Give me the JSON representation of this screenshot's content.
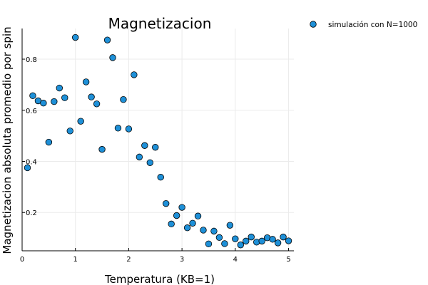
{
  "chart_data": {
    "type": "scatter",
    "title": "Magnetizacion",
    "xlabel": "Temperatura (KB=1)",
    "ylabel": "Magnetizacion absoluta promedio por spin",
    "xlim": [
      0,
      5.1
    ],
    "ylim": [
      0.05,
      0.92
    ],
    "xticks": [
      0,
      1,
      2,
      3,
      4,
      5
    ],
    "xtick_labels": [
      "0",
      "1",
      "2",
      "3",
      "4",
      "5"
    ],
    "yticks": [
      0.2,
      0.4,
      0.6,
      0.8
    ],
    "ytick_labels": [
      "0.2",
      "0.4",
      "0.6",
      "0.8"
    ],
    "grid": true,
    "legend_position": "top-right",
    "colors": {
      "marker": "#1e90d8",
      "marker_edge": "#000000",
      "axis": "#000000",
      "grid": "#ebebeb"
    },
    "series": [
      {
        "name": "simulación con N=1000",
        "x": [
          0.1,
          0.2,
          0.3,
          0.4,
          0.5,
          0.6,
          0.7,
          0.8,
          0.9,
          1.0,
          1.1,
          1.2,
          1.3,
          1.4,
          1.5,
          1.6,
          1.7,
          1.8,
          1.9,
          2.0,
          2.1,
          2.2,
          2.3,
          2.4,
          2.5,
          2.6,
          2.7,
          2.8,
          2.9,
          3.0,
          3.1,
          3.2,
          3.3,
          3.4,
          3.5,
          3.6,
          3.7,
          3.8,
          3.9,
          4.0,
          4.1,
          4.2,
          4.3,
          4.4,
          4.5,
          4.6,
          4.7,
          4.8,
          4.9,
          5.0
        ],
        "y": [
          0.375,
          0.657,
          0.637,
          0.628,
          0.475,
          0.634,
          0.687,
          0.649,
          0.519,
          0.885,
          0.557,
          0.711,
          0.652,
          0.625,
          0.447,
          0.875,
          0.806,
          0.53,
          0.642,
          0.527,
          0.739,
          0.417,
          0.462,
          0.395,
          0.455,
          0.338,
          0.235,
          0.155,
          0.188,
          0.22,
          0.14,
          0.158,
          0.186,
          0.131,
          0.077,
          0.127,
          0.102,
          0.078,
          0.15,
          0.097,
          0.073,
          0.088,
          0.104,
          0.084,
          0.088,
          0.101,
          0.095,
          0.081,
          0.104,
          0.089
        ]
      }
    ]
  }
}
